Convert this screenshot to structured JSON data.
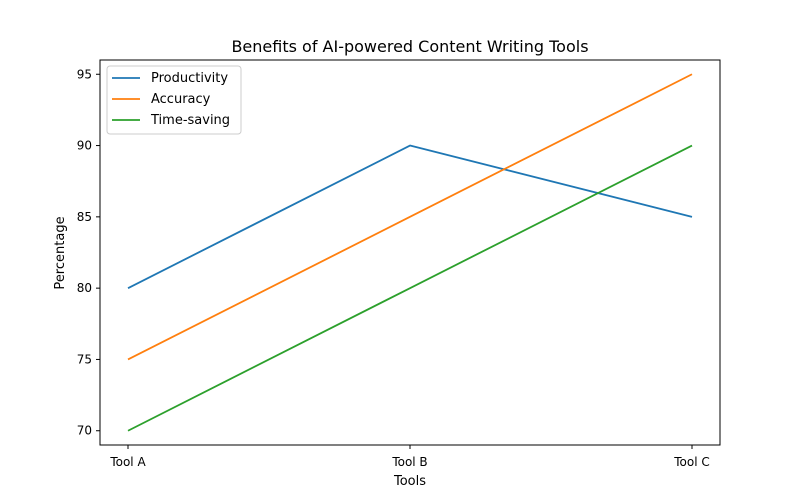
{
  "chart_data": {
    "type": "line",
    "title": "Benefits of AI-powered Content Writing Tools",
    "xlabel": "Tools",
    "ylabel": "Percentage",
    "categories": [
      "Tool A",
      "Tool B",
      "Tool C"
    ],
    "ylim": [
      69,
      96
    ],
    "yticks": [
      70,
      75,
      80,
      85,
      90,
      95
    ],
    "grid": false,
    "legend_position": "top-left",
    "series": [
      {
        "name": "Productivity",
        "color": "#1f77b4",
        "values": [
          80,
          90,
          85
        ]
      },
      {
        "name": "Accuracy",
        "color": "#ff7f0e",
        "values": [
          75,
          85,
          95
        ]
      },
      {
        "name": "Time-saving",
        "color": "#2ca02c",
        "values": [
          70,
          80,
          90
        ]
      }
    ]
  }
}
